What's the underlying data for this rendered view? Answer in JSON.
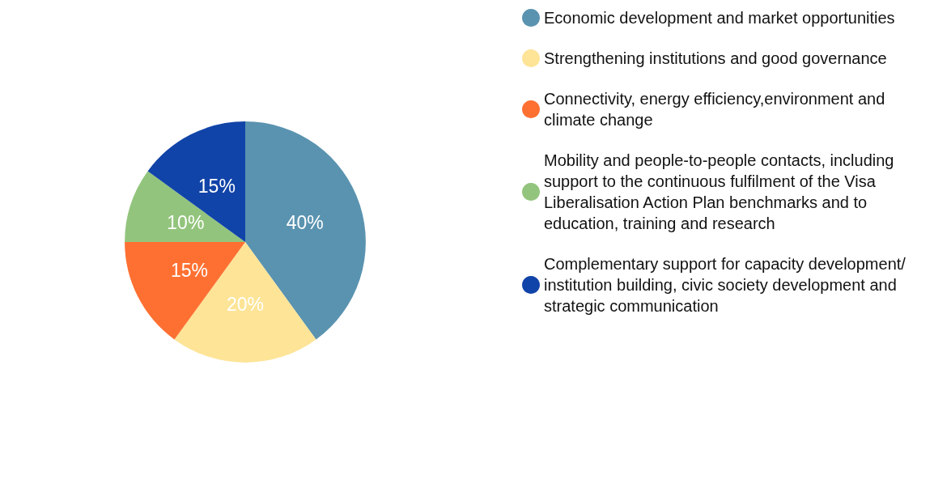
{
  "chart_data": {
    "type": "pie",
    "categories": [
      "Economic development and market opportunities",
      "Strengthening institutions and good governance",
      "Connectivity, energy efficiency,environment and climate change",
      "Mobility and people-to-people contacts, including support to the continuous fulfilment of the Visa Liberalisation Action Plan benchmarks and to education, training and research",
      "Complementary support for capacity development/institution building, civic society development and strategic communication"
    ],
    "values": [
      40,
      20,
      15,
      10,
      15
    ],
    "value_labels": [
      "40%",
      "20%",
      "15%",
      "10%",
      "15%"
    ],
    "colors": [
      "#5a93b0",
      "#fde497",
      "#fe7032",
      "#93c47d",
      "#1144a8"
    ],
    "legend": "right"
  }
}
